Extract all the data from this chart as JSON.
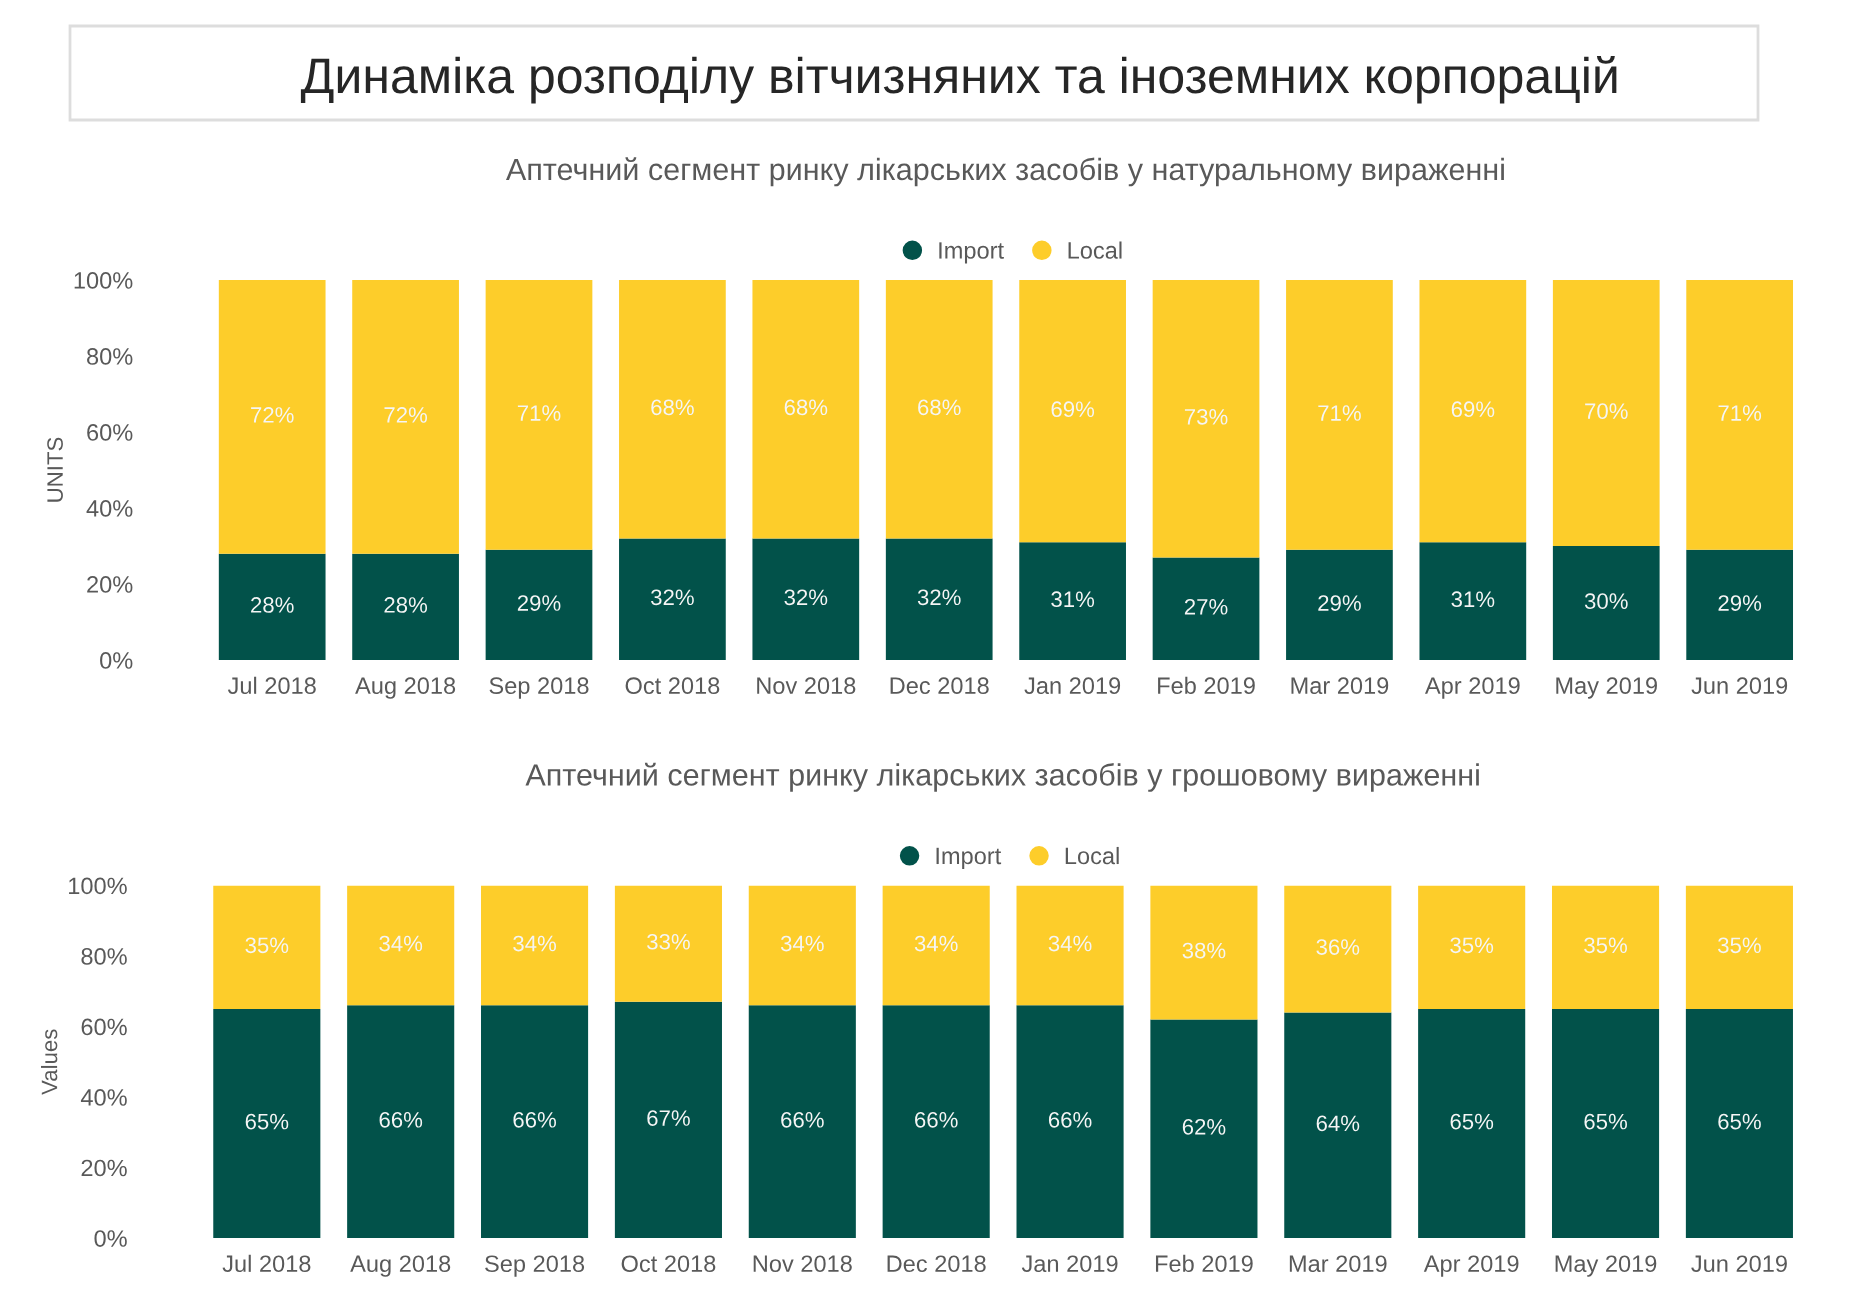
{
  "chart_data": [
    {
      "type": "bar",
      "title": "Динаміка розподілу вітчизняних та іноземних корпорацій",
      "subtitle": "Аптечний сегмент ринку лікарських засобів у натуральному вираженні",
      "ylabel": "UNITS",
      "stacked": true,
      "legend": "top",
      "categories": [
        "Jul 2018",
        "Aug 2018",
        "Sep 2018",
        "Oct 2018",
        "Nov 2018",
        "Dec 2018",
        "Jan 2019",
        "Feb 2019",
        "Mar 2019",
        "Apr 2019",
        "May 2019",
        "Jun 2019"
      ],
      "series": [
        {
          "name": "Import",
          "color": "#02524a",
          "values": [
            28,
            28,
            29,
            32,
            32,
            32,
            31,
            27,
            29,
            31,
            30,
            29
          ],
          "value_labels": [
            "28%",
            "28%",
            "29%",
            "32%",
            "32%",
            "32%",
            "31%",
            "27%",
            "29%",
            "31%",
            "30%",
            "29%"
          ]
        },
        {
          "name": "Local",
          "color": "#fdcd2a",
          "values": [
            72,
            72,
            71,
            68,
            68,
            68,
            69,
            73,
            71,
            69,
            70,
            71
          ],
          "value_labels": [
            "72%",
            "72%",
            "71%",
            "68%",
            "68%",
            "68%",
            "69%",
            "73%",
            "71%",
            "69%",
            "70%",
            "71%"
          ]
        }
      ],
      "ylim": [
        0,
        100
      ],
      "yticks": [
        {
          "value": 0,
          "label": "0%"
        },
        {
          "value": 20,
          "label": "20%"
        },
        {
          "value": 40,
          "label": "40%"
        },
        {
          "value": 60,
          "label": "60%"
        },
        {
          "value": 80,
          "label": "80%"
        },
        {
          "value": 100,
          "label": "100%"
        }
      ]
    },
    {
      "type": "bar",
      "title": "Аптечний сегмент ринку лікарських засобів у грошовому вираженні",
      "ylabel": "Values",
      "stacked": true,
      "legend": "top",
      "categories": [
        "Jul 2018",
        "Aug 2018",
        "Sep 2018",
        "Oct 2018",
        "Nov 2018",
        "Dec 2018",
        "Jan 2019",
        "Feb 2019",
        "Mar 2019",
        "Apr 2019",
        "May 2019",
        "Jun 2019"
      ],
      "series": [
        {
          "name": "Import",
          "color": "#02524a",
          "values": [
            65,
            66,
            66,
            67,
            66,
            66,
            66,
            62,
            64,
            65,
            65,
            65
          ],
          "value_labels": [
            "65%",
            "66%",
            "66%",
            "67%",
            "66%",
            "66%",
            "66%",
            "62%",
            "64%",
            "65%",
            "65%",
            "65%"
          ]
        },
        {
          "name": "Local",
          "color": "#fdcd2a",
          "values": [
            35,
            34,
            34,
            33,
            34,
            34,
            34,
            38,
            36,
            35,
            35,
            35
          ],
          "value_labels": [
            "35%",
            "34%",
            "34%",
            "33%",
            "34%",
            "34%",
            "34%",
            "38%",
            "36%",
            "35%",
            "35%",
            "35%"
          ]
        }
      ],
      "ylim": [
        0,
        100
      ],
      "yticks": [
        {
          "value": 0,
          "label": "0%"
        },
        {
          "value": 20,
          "label": "20%"
        },
        {
          "value": 40,
          "label": "40%"
        },
        {
          "value": 60,
          "label": "60%"
        },
        {
          "value": 80,
          "label": "80%"
        },
        {
          "value": 100,
          "label": "100%"
        }
      ]
    }
  ]
}
